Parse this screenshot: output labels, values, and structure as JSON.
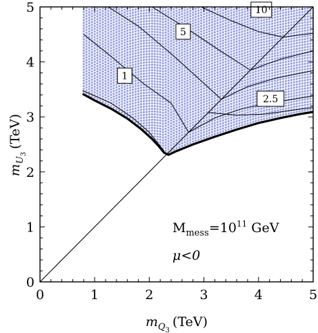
{
  "chart_data": {
    "type": "scatter",
    "title": "",
    "xlabel": {
      "var": "m",
      "sub": "Q",
      "subsub": "3",
      "unit": "(TeV)"
    },
    "ylabel": {
      "var": "m",
      "sub": "U",
      "subsub": "3",
      "unit": "(TeV)"
    },
    "xlim": [
      0,
      5
    ],
    "ylim": [
      0,
      5
    ],
    "xticks": [
      "0",
      "1",
      "2",
      "3",
      "4",
      "5"
    ],
    "yticks": [
      "0",
      "1",
      "2",
      "3",
      "4",
      "5"
    ],
    "grid": false,
    "colors": {
      "points": "#9aa3e0",
      "lines": "#000000",
      "frame": "#000000"
    },
    "annotations": {
      "mess_main": "M",
      "mess_sub": "mess",
      "mess_eq": "=10",
      "mess_exp": "11",
      "mess_unit": " GeV",
      "mu": "μ<0"
    },
    "diagonal": [
      [
        0,
        0
      ],
      [
        5,
        5
      ]
    ],
    "boundary": [
      [
        0.78,
        3.42
      ],
      [
        1.0,
        3.3
      ],
      [
        1.3,
        3.15
      ],
      [
        1.6,
        2.97
      ],
      [
        1.85,
        2.78
      ],
      [
        2.05,
        2.6
      ],
      [
        2.18,
        2.46
      ],
      [
        2.27,
        2.35
      ],
      [
        2.35,
        2.31
      ],
      [
        2.5,
        2.38
      ],
      [
        2.8,
        2.5
      ],
      [
        3.2,
        2.64
      ],
      [
        3.6,
        2.77
      ],
      [
        4.0,
        2.89
      ],
      [
        4.4,
        2.98
      ],
      [
        4.75,
        3.05
      ],
      [
        5.0,
        3.09
      ]
    ],
    "contours": [
      {
        "label": "1",
        "points": [
          [
            0.78,
            3.48
          ],
          [
            1.3,
            3.25
          ],
          [
            1.7,
            2.98
          ],
          [
            2.0,
            2.72
          ],
          [
            2.27,
            2.38
          ]
        ],
        "upper": [
          [
            3.08,
            3.08
          ],
          [
            3.6,
            3.03
          ],
          [
            4.1,
            3.05
          ],
          [
            4.6,
            3.12
          ],
          [
            5.0,
            3.17
          ]
        ],
        "label_at": [
          1.55,
          3.75
        ]
      },
      {
        "label": "2.5",
        "points": [
          [
            0.8,
            4.5
          ],
          [
            1.3,
            4.1
          ],
          [
            1.9,
            3.6
          ],
          [
            2.4,
            3.25
          ],
          [
            2.72,
            2.72
          ]
        ],
        "upper": [
          [
            2.72,
            2.72
          ],
          [
            3.2,
            2.98
          ],
          [
            3.7,
            3.15
          ],
          [
            4.2,
            3.25
          ],
          [
            4.7,
            3.33
          ],
          [
            5.0,
            3.38
          ]
        ],
        "label_at": [
          4.22,
          3.33
        ]
      },
      {
        "label": "5",
        "points": [
          [
            1.25,
            5.0
          ],
          [
            1.8,
            4.65
          ],
          [
            2.4,
            4.15
          ],
          [
            2.9,
            3.7
          ],
          [
            3.32,
            3.32
          ]
        ],
        "upper": [
          [
            3.32,
            3.32
          ],
          [
            3.8,
            3.55
          ],
          [
            4.3,
            3.7
          ],
          [
            5.0,
            3.84
          ]
        ],
        "label_at": [
          2.62,
          4.55
        ]
      },
      {
        "label": "10",
        "points": [
          [
            2.05,
            5.0
          ],
          [
            2.7,
            4.6
          ],
          [
            3.3,
            4.2
          ],
          [
            3.85,
            3.85
          ]
        ],
        "upper": [
          [
            3.85,
            3.85
          ],
          [
            4.4,
            4.05
          ],
          [
            5.0,
            4.2
          ]
        ],
        "label_at": [
          4.05,
          4.95
        ]
      },
      {
        "label": "",
        "points": [
          [
            2.95,
            5.0
          ],
          [
            3.5,
            4.75
          ],
          [
            4.0,
            4.55
          ],
          [
            4.45,
            4.45
          ]
        ],
        "upper": [
          [
            4.45,
            4.45
          ],
          [
            5.0,
            4.52
          ]
        ],
        "label_at": null
      }
    ],
    "scatter_region": {
      "x_min": 0.8,
      "x_max": 5.0,
      "y_max": 5.0,
      "x_step": 0.05,
      "y_step": 0.05
    }
  }
}
